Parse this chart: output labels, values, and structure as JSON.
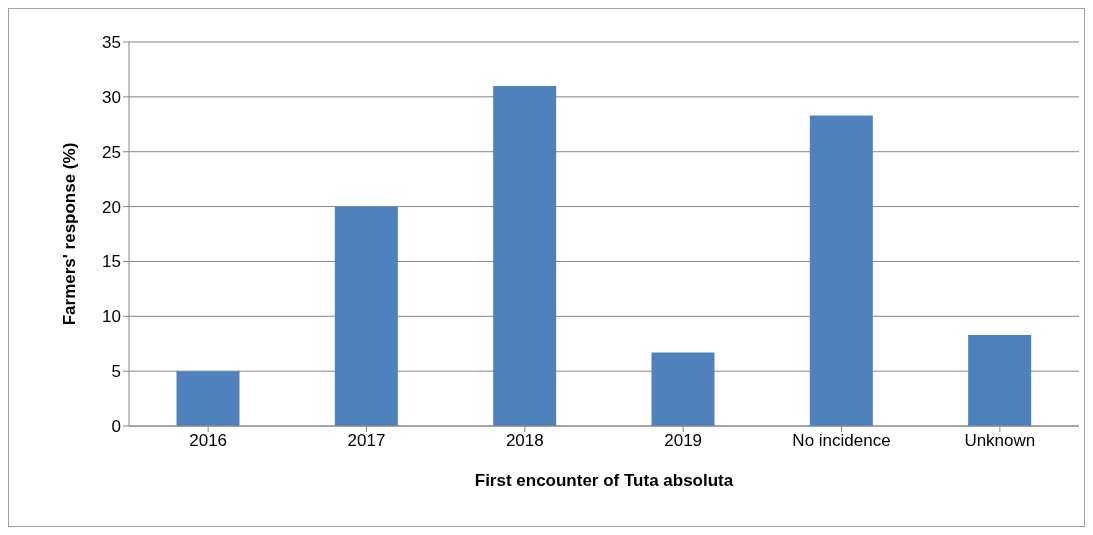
{
  "chart_data": {
    "type": "bar",
    "xlabel": "First encounter of Tuta absoluta",
    "ylabel": "Farmers' response (%)",
    "categories": [
      "2016",
      "2017",
      "2018",
      "2019",
      "No incidence",
      "Unknown"
    ],
    "values": [
      5,
      20,
      31,
      6.7,
      28.3,
      8.3
    ],
    "color": "#4f81bd",
    "ylim": [
      0,
      35
    ],
    "yticks": [
      0,
      5,
      10,
      15,
      20,
      25,
      30,
      35
    ],
    "grid": "y"
  }
}
